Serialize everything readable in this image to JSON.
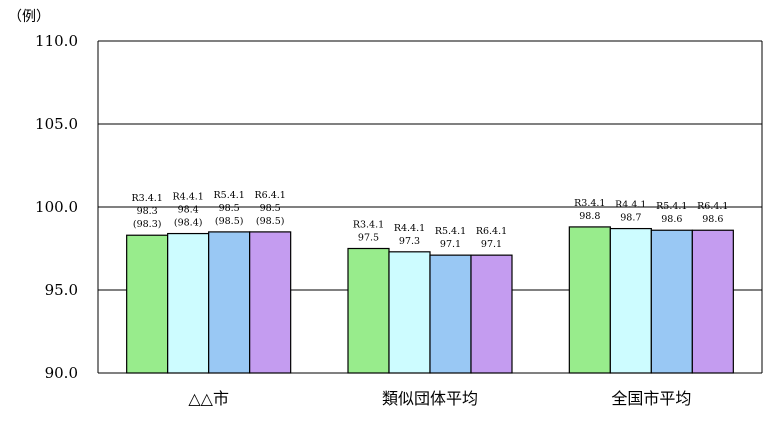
{
  "chart_data": {
    "type": "bar",
    "unit_label": "（例）",
    "ylim": [
      90,
      110
    ],
    "yticks": [
      "90.0",
      "95.0",
      "100.0",
      "105.0",
      "110.0"
    ],
    "grid": true,
    "categories": [
      "△△市",
      "類似団体平均",
      "全国市平均"
    ],
    "series": [
      {
        "name": "R3.4.1",
        "color": "#98ec8c",
        "values": [
          98.3,
          97.5,
          98.8
        ],
        "paren": [
          "(98.3)",
          null,
          null
        ]
      },
      {
        "name": "R4.4.1",
        "color": "#cdfcff",
        "values": [
          98.4,
          97.3,
          98.7
        ],
        "paren": [
          "(98.4)",
          null,
          null
        ]
      },
      {
        "name": "R5.4.1",
        "color": "#99c8f4",
        "values": [
          98.5,
          97.1,
          98.6
        ],
        "paren": [
          "(98.5)",
          null,
          null
        ]
      },
      {
        "name": "R6.4.1",
        "color": "#c49cf0",
        "values": [
          98.5,
          97.1,
          98.6
        ],
        "paren": [
          "(98.5)",
          null,
          null
        ]
      }
    ]
  }
}
